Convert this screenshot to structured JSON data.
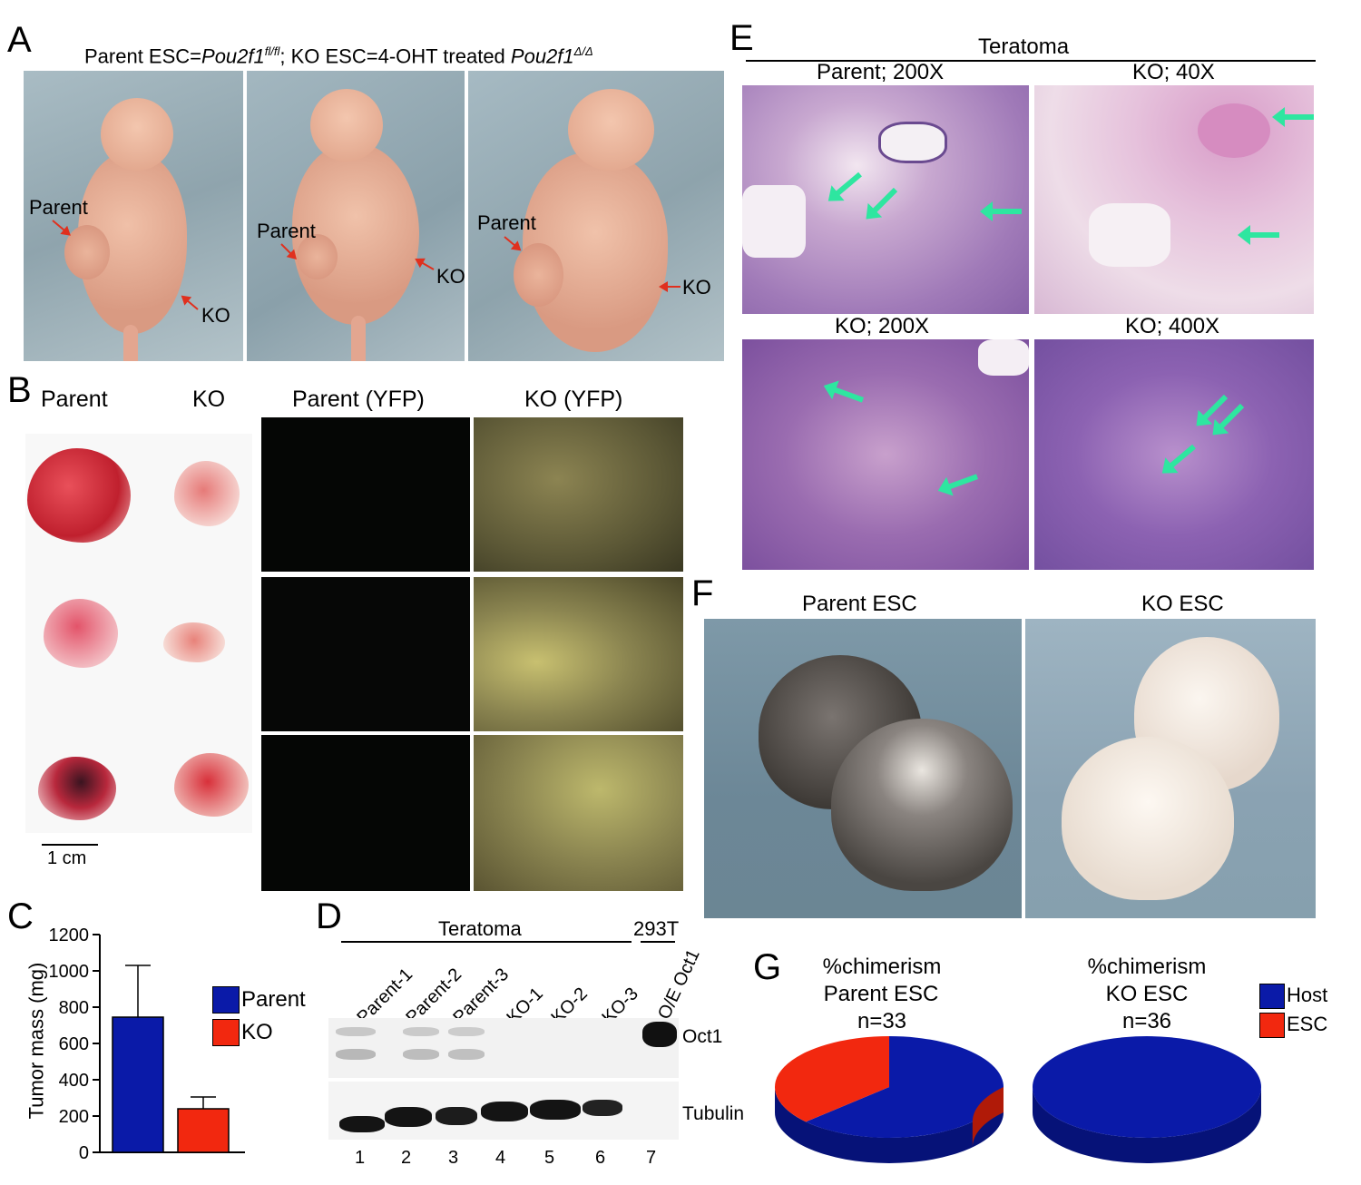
{
  "panels": {
    "A": {
      "letter": "A",
      "title_parts": [
        "Parent ESC=",
        "Pou2f1",
        "fl/fl",
        "; KO ESC=4-OHT treated ",
        "Pou2f1",
        "Δ/Δ"
      ],
      "photo_labels": [
        {
          "parent": "Parent",
          "ko": "KO"
        },
        {
          "parent": "Parent",
          "ko": "KO"
        },
        {
          "parent": "Parent",
          "ko": "KO"
        }
      ]
    },
    "B": {
      "letter": "B",
      "headers": [
        "Parent",
        "KO",
        "Parent (YFP)",
        "KO (YFP)"
      ],
      "scale_bar": "1 cm"
    },
    "C": {
      "letter": "C",
      "ylabel": "Tumor mass (mg)",
      "legend": [
        {
          "name": "Parent",
          "color": "#0a1aa8"
        },
        {
          "name": "KO",
          "color": "#f2280f"
        }
      ]
    },
    "D": {
      "letter": "D",
      "group_labels": [
        "Teratoma",
        "293T"
      ],
      "lane_labels": [
        "Parent-1",
        "Parent-2",
        "Parent-3",
        "KO-1",
        "KO-2",
        "KO-3",
        "O/E Oct1"
      ],
      "lane_numbers": [
        "1",
        "2",
        "3",
        "4",
        "5",
        "6",
        "7"
      ],
      "band_labels": [
        "Oct1",
        "Tubulin"
      ]
    },
    "E": {
      "letter": "E",
      "title": "Teratoma",
      "image_titles": [
        "Parent; 200X",
        "KO; 40X",
        "KO; 200X",
        "KO; 400X"
      ]
    },
    "F": {
      "letter": "F",
      "titles": [
        "Parent ESC",
        "KO ESC"
      ]
    },
    "G": {
      "letter": "G",
      "pies": [
        {
          "lines": [
            "%chimerism",
            "Parent ESC",
            "n=33"
          ]
        },
        {
          "lines": [
            "%chimerism",
            "KO ESC",
            "n=36"
          ]
        }
      ],
      "legend": [
        {
          "name": "Host",
          "color": "#0a1aa8"
        },
        {
          "name": "ESC",
          "color": "#f2280f"
        }
      ]
    }
  },
  "chart_data": [
    {
      "type": "bar",
      "categories": [
        "Parent",
        "KO"
      ],
      "values": [
        745,
        240
      ],
      "errors": [
        285,
        65
      ],
      "ylabel": "Tumor mass (mg)",
      "ylim": [
        0,
        1200
      ],
      "yticks": [
        0,
        200,
        400,
        600,
        800,
        1000,
        1200
      ],
      "colors": [
        "#0a1aa8",
        "#f2280f"
      ],
      "legend_position": "right"
    },
    {
      "type": "pie",
      "title": "%chimerism Parent ESC n=33",
      "labels": [
        "Host",
        "ESC"
      ],
      "values": [
        63,
        37
      ],
      "colors": [
        "#0a1aa8",
        "#f2280f"
      ]
    },
    {
      "type": "pie",
      "title": "%chimerism KO ESC n=36",
      "labels": [
        "Host",
        "ESC"
      ],
      "values": [
        100,
        0
      ],
      "colors": [
        "#0a1aa8",
        "#f2280f"
      ]
    }
  ]
}
